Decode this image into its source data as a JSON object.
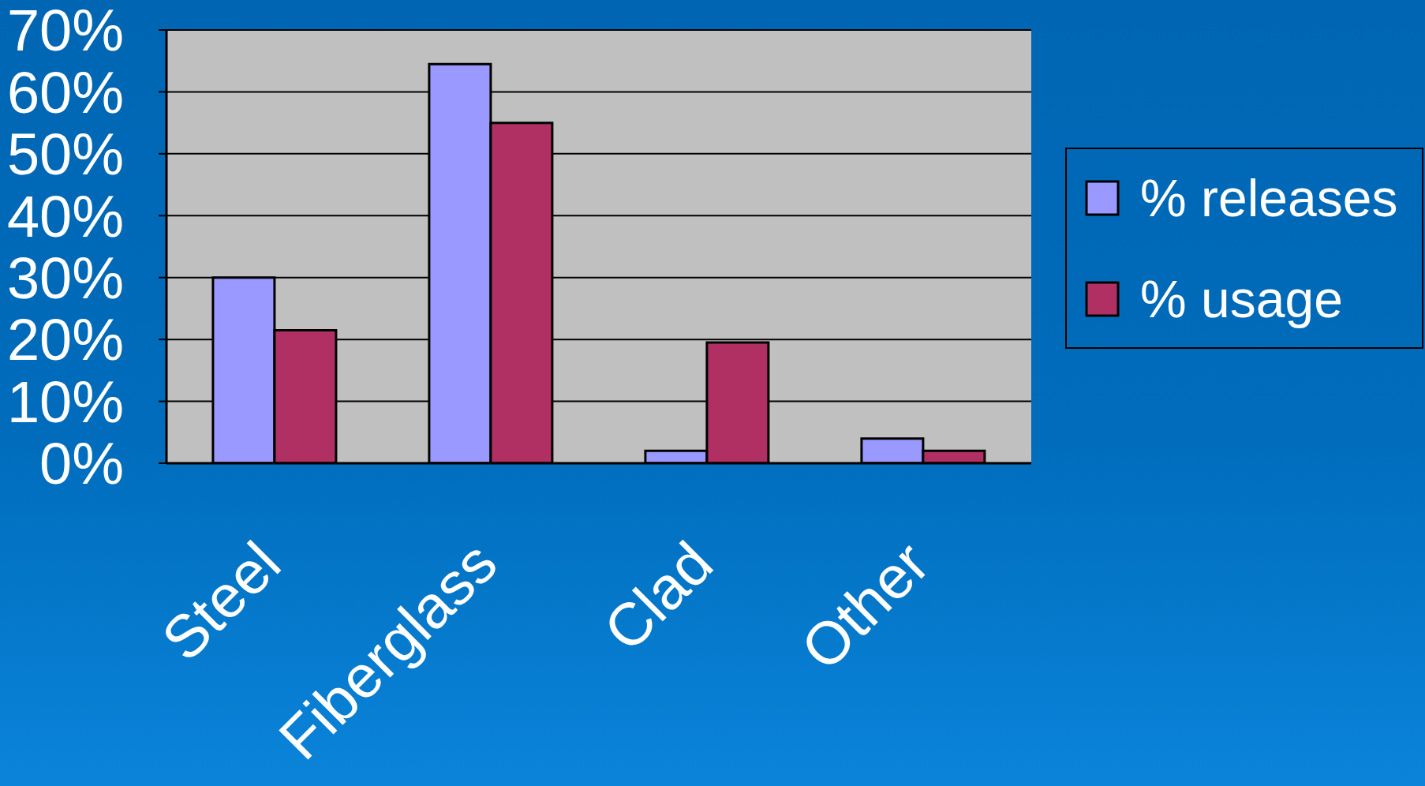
{
  "chart_data": {
    "type": "bar",
    "categories": [
      "Steel",
      "Fiberglass",
      "Clad",
      "Other"
    ],
    "series": [
      {
        "name": "% releases",
        "color": "#9999ff",
        "values": [
          30,
          64.5,
          2,
          4
        ]
      },
      {
        "name": "% usage",
        "color": "#b03063",
        "values": [
          21.5,
          55,
          19.5,
          2
        ]
      }
    ],
    "ylim": [
      0,
      70
    ],
    "yticks": [
      {
        "value": 0,
        "label": "0%"
      },
      {
        "value": 10,
        "label": "10%"
      },
      {
        "value": 20,
        "label": "20%"
      },
      {
        "value": 30,
        "label": "30%"
      },
      {
        "value": 40,
        "label": "40%"
      },
      {
        "value": 50,
        "label": "50%"
      },
      {
        "value": 60,
        "label": "60%"
      },
      {
        "value": 70,
        "label": "70%"
      }
    ],
    "grid": "y",
    "legend": "right"
  }
}
